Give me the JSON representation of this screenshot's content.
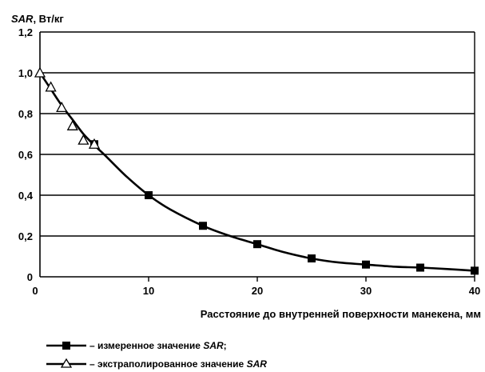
{
  "chart_data": {
    "type": "line",
    "ylabel_var": "SAR",
    "ylabel_unit": ", Вт/кг",
    "xlabel": "Расстояние до внутренней поверхности манекена, мм",
    "xlim": [
      0,
      40
    ],
    "ylim": [
      0,
      1.2
    ],
    "x_ticks": [
      "0",
      "10",
      "20",
      "30",
      "40"
    ],
    "y_ticks": [
      "0",
      "0,2",
      "0,4",
      "0,6",
      "0,8",
      "1,0",
      "1,2"
    ],
    "grid": "horizontal",
    "series": [
      {
        "name": "– измеренное значение SAR;",
        "name_prefix": "– измеренное значение ",
        "name_var": "SAR",
        "name_suffix": ";",
        "marker": "square",
        "x": [
          5,
          10,
          15,
          20,
          25,
          30,
          35,
          40
        ],
        "y": [
          0.65,
          0.4,
          0.25,
          0.16,
          0.09,
          0.06,
          0.045,
          0.03
        ]
      },
      {
        "name": "– экстраполированное значение SAR",
        "name_prefix": "– экстраполированное значение ",
        "name_var": "SAR",
        "name_suffix": "",
        "marker": "triangle",
        "x": [
          0,
          1,
          2,
          3,
          4,
          5
        ],
        "y": [
          1.0,
          0.93,
          0.83,
          0.74,
          0.67,
          0.65
        ]
      }
    ],
    "curve": {
      "x": [
        0,
        1,
        2,
        3,
        4,
        5,
        6,
        8,
        10,
        12,
        15,
        17.5,
        20,
        22.5,
        25,
        27.5,
        30,
        32.5,
        35,
        37.5,
        40
      ],
      "y": [
        1.0,
        0.92,
        0.84,
        0.77,
        0.7,
        0.645,
        0.595,
        0.49,
        0.4,
        0.33,
        0.25,
        0.2,
        0.16,
        0.12,
        0.09,
        0.07,
        0.06,
        0.05,
        0.045,
        0.038,
        0.03
      ]
    }
  }
}
